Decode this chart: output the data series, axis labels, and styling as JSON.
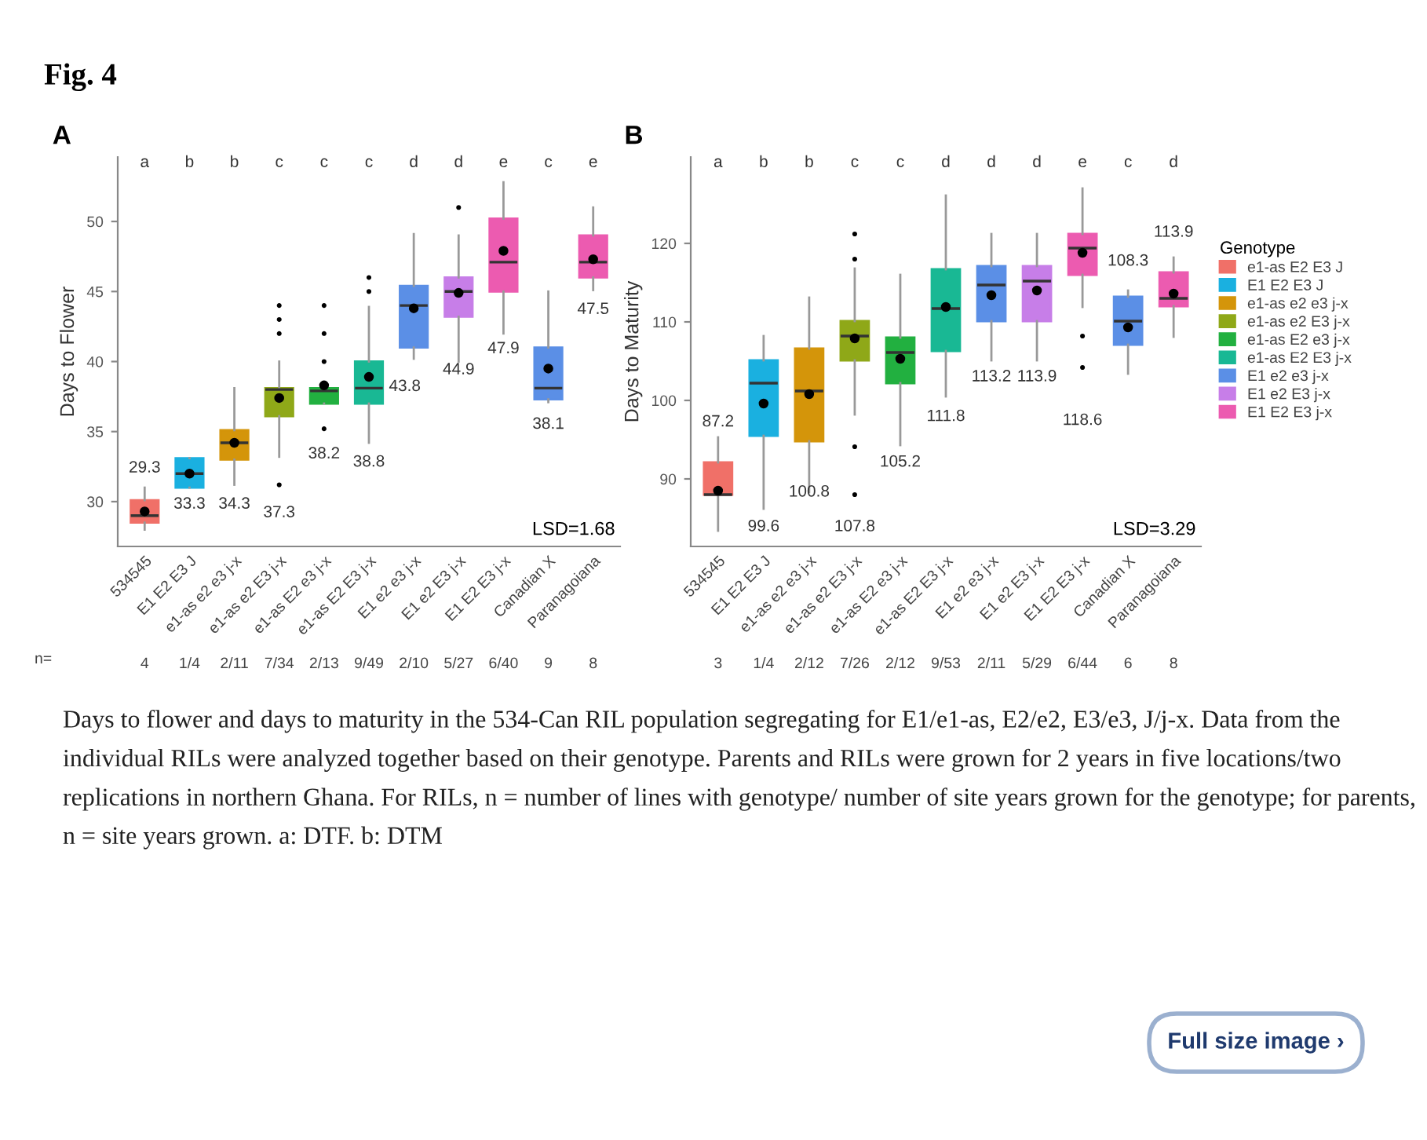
{
  "chart_data": [
    {
      "type": "box",
      "title": "A",
      "ylabel": "Days to Flower",
      "categories": [
        "534545",
        "E1 E2 E3 J",
        "e1-as e2 e3 j-x",
        "e1-as e2 E3 j-x",
        "e1-as E2 e3 j-x",
        "e1-as E2 E3 j-x",
        "E1 e2 e3 j-x",
        "E1 e2 E3 j-x",
        "E1 E2 E3 j-x",
        "Canadian X",
        "Paranagoiana"
      ],
      "ylim": [
        26.8,
        54.6
      ],
      "yticks": [
        30,
        35,
        40,
        45,
        50
      ],
      "grid": false,
      "legend": false,
      "series": [
        {
          "color": "#f07068",
          "boxes": [
            {
              "low": 28.0,
              "q1": 28.5,
              "median": 29.0,
              "q3": 30.1,
              "high": 31.0,
              "mean": 29.3
            },
            null,
            null,
            null,
            null,
            null,
            null,
            null,
            null,
            null,
            null
          ]
        },
        {
          "color": "#1ab0e0",
          "boxes": [
            null,
            {
              "low": 31.0,
              "q1": 31.0,
              "median": 32.0,
              "q3": 33.1,
              "high": 33.1,
              "mean": 32.0
            },
            null,
            null,
            null,
            null,
            null,
            null,
            null,
            null,
            null
          ]
        },
        {
          "color": "#d4950a",
          "boxes": [
            null,
            null,
            {
              "low": 31.2,
              "q1": 33.0,
              "median": 34.2,
              "q3": 35.1,
              "high": 38.1,
              "mean": 34.2
            },
            null,
            null,
            null,
            null,
            null,
            null,
            null,
            null
          ]
        },
        {
          "color": "#8fa818",
          "boxes": [
            null,
            null,
            null,
            {
              "low": 33.2,
              "q1": 36.1,
              "median": 38.0,
              "q3": 38.1,
              "high": 40.0,
              "mean": 37.4,
              "outliers": [
                44.0,
                43.0,
                42.0,
                31.2
              ]
            },
            null,
            null,
            null,
            null,
            null,
            null,
            null
          ]
        },
        {
          "color": "#22b040",
          "boxes": [
            null,
            null,
            null,
            null,
            {
              "low": 37.0,
              "q1": 37.0,
              "median": 37.9,
              "q3": 38.1,
              "high": 38.1,
              "mean": 38.3,
              "outliers": [
                44.0,
                42.0,
                40.0,
                35.2
              ]
            },
            null,
            null,
            null,
            null,
            null,
            null
          ]
        },
        {
          "color": "#19b894",
          "boxes": [
            null,
            null,
            null,
            null,
            null,
            {
              "low": 34.2,
              "q1": 37.0,
              "median": 38.1,
              "q3": 40.0,
              "high": 43.9,
              "mean": 38.9,
              "outliers": [
                46.0,
                45.0
              ]
            },
            null,
            null,
            null,
            null,
            null
          ]
        },
        {
          "color": "#5b8fe6",
          "boxes": [
            null,
            null,
            null,
            null,
            null,
            null,
            {
              "low": 40.2,
              "q1": 41.0,
              "median": 44.0,
              "q3": 45.4,
              "high": 49.1,
              "mean": 43.8
            },
            null,
            null,
            {
              "low": 37.1,
              "q1": 37.3,
              "median": 38.1,
              "q3": 41.0,
              "high": 45.0,
              "mean": 39.5
            },
            null
          ]
        },
        {
          "color": "#c77ee8",
          "boxes": [
            null,
            null,
            null,
            null,
            null,
            null,
            null,
            {
              "low": 40.0,
              "q1": 43.2,
              "median": 45.0,
              "q3": 46.0,
              "high": 49.0,
              "mean": 44.9,
              "outliers": [
                51.0
              ]
            },
            null,
            null,
            null
          ]
        },
        {
          "color": "#ec5bb0",
          "boxes": [
            null,
            null,
            null,
            null,
            null,
            null,
            null,
            null,
            {
              "low": 42.0,
              "q1": 45.0,
              "median": 47.1,
              "q3": 50.2,
              "high": 52.8,
              "mean": 47.9
            },
            null,
            {
              "low": 45.1,
              "q1": 46.0,
              "median": 47.1,
              "q3": 49.0,
              "high": 51.0,
              "mean": 47.3
            }
          ]
        }
      ],
      "annotations": [
        "Fig. 4",
        "LSD=1.68",
        "n=",
        "29.3",
        "33.3",
        "34.3",
        "37.3",
        "38.2",
        "38.8",
        "43.8",
        "44.9",
        "47.9",
        "38.1",
        "47.5",
        "a",
        "b",
        "b",
        "c",
        "c",
        "c",
        "d",
        "d",
        "e",
        "c",
        "e",
        "4",
        "1/4",
        "2/11",
        "7/34",
        "2/13",
        "9/49",
        "2/10",
        "5/27",
        "6/40",
        "9",
        "8"
      ]
    },
    {
      "type": "box",
      "title": "B",
      "ylabel": "Days to Maturity",
      "legend_title": "Genotype",
      "categories": [
        "534545",
        "E1 E2 E3 J",
        "e1-as e2 e3 j-x",
        "e1-as e2 E3 j-x",
        "e1-as E2 e3 j-x",
        "e1-as E2 E3 j-x",
        "E1 e2 e3 j-x",
        "E1 e2 E3 j-x",
        "E1 E2 E3 j-x",
        "Canadian X",
        "Paranagoiana"
      ],
      "ylim": [
        81.4,
        131
      ],
      "yticks": [
        90,
        100,
        110,
        120
      ],
      "grid": false,
      "legend": "right",
      "series": [
        {
          "name": "e1-as E2 E3 J",
          "color": "#f07068",
          "boxes": [
            {
              "low": 83.4,
              "q1": 88.0,
              "median": 88.0,
              "q3": 92.1,
              "high": 95.3,
              "mean": 88.5
            },
            null,
            null,
            null,
            null,
            null,
            null,
            null,
            null,
            null,
            null
          ]
        },
        {
          "name": "E1 E2 E3 J",
          "color": "#1ab0e0",
          "boxes": [
            null,
            {
              "low": 86.2,
              "q1": 95.5,
              "median": 102.2,
              "q3": 105.1,
              "high": 108.2,
              "mean": 99.6
            },
            null,
            null,
            null,
            null,
            null,
            null,
            null,
            null,
            null
          ]
        },
        {
          "name": "e1-as e2 e3 j-x",
          "color": "#d4950a",
          "boxes": [
            null,
            null,
            {
              "low": 88.3,
              "q1": 94.8,
              "median": 101.2,
              "q3": 106.6,
              "high": 113.1,
              "mean": 100.8
            },
            null,
            null,
            null,
            null,
            null,
            null,
            null,
            null
          ]
        },
        {
          "name": "e1-as e2 E3 j-x",
          "color": "#8fa818",
          "boxes": [
            null,
            null,
            null,
            {
              "low": 98.2,
              "q1": 105.1,
              "median": 108.2,
              "q3": 110.1,
              "high": 116.8,
              "mean": 107.9,
              "outliers": [
                121.2,
                118.0,
                94.1,
                88.0
              ]
            },
            null,
            null,
            null,
            null,
            null,
            null,
            null
          ]
        },
        {
          "name": "e1-as E2 e3 j-x",
          "color": "#22b040",
          "boxes": [
            null,
            null,
            null,
            null,
            {
              "low": 94.3,
              "q1": 102.2,
              "median": 106.1,
              "q3": 108.0,
              "high": 116.0,
              "mean": 105.3
            },
            null,
            null,
            null,
            null,
            null,
            null
          ]
        },
        {
          "name": "e1-as E2 E3 j-x",
          "color": "#19b894",
          "boxes": [
            null,
            null,
            null,
            null,
            null,
            {
              "low": 100.5,
              "q1": 106.3,
              "median": 111.7,
              "q3": 116.7,
              "high": 126.1,
              "mean": 111.9
            },
            null,
            null,
            null,
            null,
            null
          ]
        },
        {
          "name": "E1 e2 e3 j-x",
          "color": "#5b8fe6",
          "boxes": [
            null,
            null,
            null,
            null,
            null,
            null,
            {
              "low": 105.1,
              "q1": 110.1,
              "median": 114.7,
              "q3": 117.1,
              "high": 121.2,
              "mean": 113.4
            },
            null,
            null,
            {
              "low": 103.4,
              "q1": 107.1,
              "median": 110.1,
              "q3": 113.2,
              "high": 114.0,
              "mean": 109.3
            },
            null
          ]
        },
        {
          "name": "E1 e2 E3 j-x",
          "color": "#c77ee8",
          "boxes": [
            null,
            null,
            null,
            null,
            null,
            null,
            null,
            {
              "low": 105.1,
              "q1": 110.1,
              "median": 115.2,
              "q3": 117.1,
              "high": 121.2,
              "mean": 114.0
            },
            null,
            null,
            null
          ]
        },
        {
          "name": "E1 E2 E3 j-x",
          "color": "#ec5bb0",
          "boxes": [
            null,
            null,
            null,
            null,
            null,
            null,
            null,
            null,
            {
              "low": 111.9,
              "q1": 116.0,
              "median": 119.4,
              "q3": 121.2,
              "high": 127.0,
              "mean": 118.8,
              "outliers": [
                108.2,
                104.2
              ]
            },
            null,
            {
              "low": 108.1,
              "q1": 112.0,
              "median": 113.0,
              "q3": 116.3,
              "high": 118.2,
              "mean": 113.6
            }
          ]
        }
      ],
      "annotations": [
        "LSD=3.29",
        "Days to flower and days to maturity in the 534-Can RIL population segregating for E1/e1-as, E2/e2, E3/e3, J/j-x. Data from the individual RILs were analyzed together based on their genotype. Parents and RILs were grown for 2 years in five locations/two replications in northern Ghana. For RILs, n = number of lines with genotype/ number of site years grown for the genotype; for parents, n = site years grown. a: DTF. b: DTM",
        "Full size image ›",
        "87.2",
        "99.6",
        "100.8",
        "107.8",
        "105.2",
        "111.8",
        "113.2",
        "113.9",
        "118.6",
        "108.3",
        "113.9",
        "a",
        "b",
        "b",
        "c",
        "c",
        "d",
        "d",
        "d",
        "e",
        "c",
        "d",
        "3",
        "1/4",
        "2/12",
        "7/26",
        "2/12",
        "9/53",
        "2/11",
        "5/29",
        "6/44",
        "6",
        "8"
      ]
    }
  ]
}
